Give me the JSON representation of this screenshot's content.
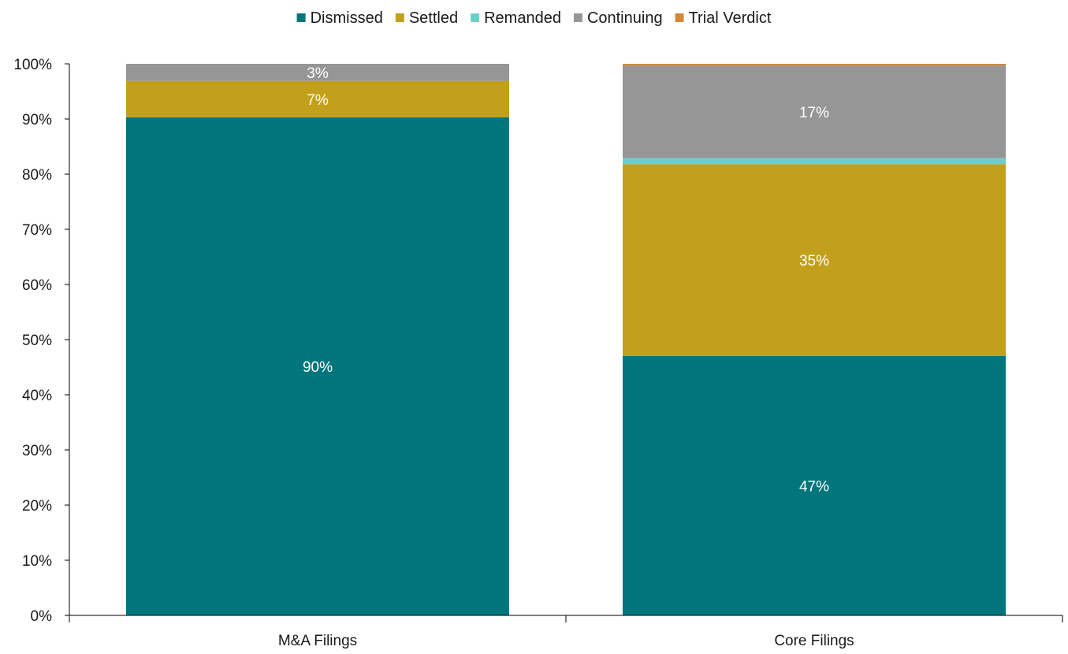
{
  "chart_data": {
    "type": "bar",
    "stacked": true,
    "categories": [
      "M&A Filings",
      "Core Filings"
    ],
    "series": [
      {
        "name": "Dismissed",
        "color": "#00757b",
        "values": [
          90.3,
          47.0
        ],
        "labels": [
          "90%",
          "47%"
        ]
      },
      {
        "name": "Settled",
        "color": "#c2a01c",
        "values": [
          6.6,
          34.8
        ],
        "labels": [
          "7%",
          "35%"
        ]
      },
      {
        "name": "Remanded",
        "color": "#6fcfc8",
        "values": [
          0.0,
          1.1
        ],
        "labels": [
          "",
          ""
        ]
      },
      {
        "name": "Continuing",
        "color": "#969696",
        "values": [
          3.1,
          16.8
        ],
        "labels": [
          "3%",
          "17%"
        ]
      },
      {
        "name": "Trial Verdict",
        "color": "#d08a3a",
        "values": [
          0.0,
          0.3
        ],
        "labels": [
          "",
          ""
        ]
      }
    ],
    "ylim": [
      0,
      100
    ],
    "yticks": [
      "0%",
      "10%",
      "20%",
      "30%",
      "40%",
      "50%",
      "60%",
      "70%",
      "80%",
      "90%",
      "100%"
    ],
    "grid": false,
    "legend_position": "top"
  }
}
